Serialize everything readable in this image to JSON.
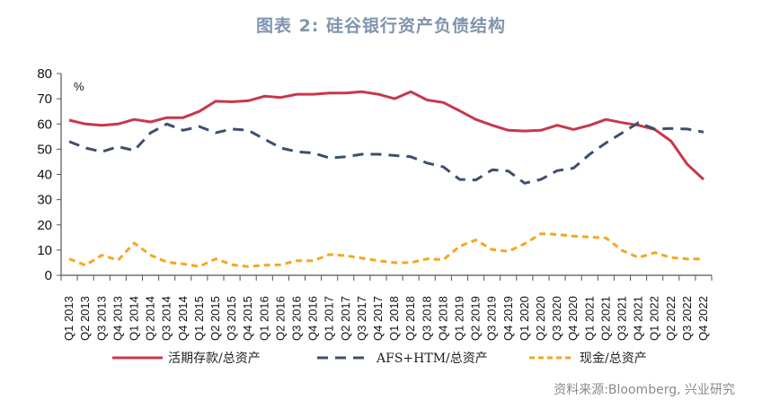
{
  "title": "图表 2:  硅谷银行资产负债结构",
  "source": "资料来源:Bloomberg, 兴业研究",
  "chart_data": {
    "type": "line",
    "title": "图表 2:  硅谷银行资产负债结构",
    "xlabel": "",
    "ylabel": "%",
    "ylim": [
      0,
      80
    ],
    "yticks": [
      0,
      10,
      20,
      30,
      40,
      50,
      60,
      70,
      80
    ],
    "grid": false,
    "legend_position": "bottom",
    "categories": [
      "Q1 2013",
      "Q2 2013",
      "Q3 2013",
      "Q4 2013",
      "Q1 2014",
      "Q2 2014",
      "Q3 2014",
      "Q4 2014",
      "Q1 2015",
      "Q2 2015",
      "Q3 2015",
      "Q4 2015",
      "Q1 2016",
      "Q2 2016",
      "Q3 2016",
      "Q4 2016",
      "Q1 2017",
      "Q2 2017",
      "Q3 2017",
      "Q4 2017",
      "Q1 2018",
      "Q2 2018",
      "Q3 2018",
      "Q4 2018",
      "Q1 2019",
      "Q2 2019",
      "Q3 2019",
      "Q4 2019",
      "Q1 2020",
      "Q2 2020",
      "Q3 2020",
      "Q4 2020",
      "Q1 2021",
      "Q2 2021",
      "Q3 2021",
      "Q4 2021",
      "Q1 2022",
      "Q2 2022",
      "Q3 2022",
      "Q4 2022"
    ],
    "series": [
      {
        "name": "活期存款/总资产",
        "color": "#c8374b",
        "style": "solid",
        "values": [
          61.5,
          60,
          59.5,
          60,
          61.8,
          60.8,
          62.5,
          62.5,
          65,
          69,
          68.8,
          69.2,
          71,
          70.5,
          71.8,
          71.8,
          72.3,
          72.3,
          72.8,
          71.8,
          70,
          72.8,
          69.5,
          68.5,
          65.2,
          61.8,
          59.5,
          57.5,
          57.2,
          57.5,
          59.5,
          57.8,
          59.5,
          61.8,
          60.5,
          59.5,
          57.8,
          53.2,
          44,
          38
        ]
      },
      {
        "name": "AFS+HTM/总资产",
        "color": "#3d4f6e",
        "style": "dashed",
        "values": [
          53,
          50.5,
          49,
          51,
          49.5,
          56.5,
          60,
          57.5,
          59,
          56.5,
          58,
          57.5,
          54,
          50.5,
          49,
          48.5,
          46.5,
          47,
          48,
          48,
          47.5,
          47,
          44.5,
          43,
          38,
          37.8,
          41.8,
          41.3,
          36.5,
          38,
          41.5,
          42.5,
          48,
          52.5,
          56.5,
          60.5,
          58,
          58.2,
          58,
          56.8
        ]
      },
      {
        "name": "现金/总资产",
        "color": "#f5a623",
        "style": "dashed",
        "values": [
          6.5,
          4,
          8,
          6,
          12.8,
          8,
          5.2,
          4.5,
          3.5,
          6.5,
          4.2,
          3.5,
          4,
          4.2,
          5.8,
          5.8,
          8.2,
          7.8,
          6.8,
          5.8,
          5,
          5,
          6.5,
          6.2,
          11.5,
          14,
          10.2,
          9.5,
          12.5,
          16.5,
          16.2,
          15.5,
          15.2,
          14.8,
          9.8,
          7,
          9,
          7,
          6.5,
          6.5
        ]
      }
    ]
  },
  "legend": [
    {
      "label": "活期存款/总资产"
    },
    {
      "label": "AFS+HTM/总资产"
    },
    {
      "label": "现金/总资产"
    }
  ],
  "axis": {
    "unit": "%"
  }
}
